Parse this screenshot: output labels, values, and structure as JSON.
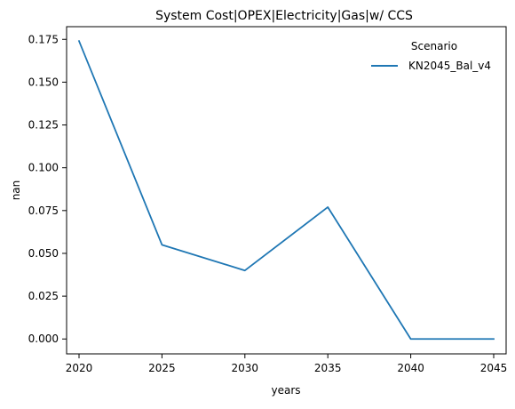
{
  "chart_data": {
    "type": "line",
    "title": "System Cost|OPEX|Electricity|Gas|w/ CCS",
    "xlabel": "years",
    "ylabel": "nan",
    "x": [
      2020,
      2025,
      2030,
      2035,
      2040,
      2045
    ],
    "xticks": [
      "2020",
      "2025",
      "2030",
      "2035",
      "2040",
      "2045"
    ],
    "xlim": [
      2019.25,
      2045.75
    ],
    "yticks": [
      "0.000",
      "0.025",
      "0.050",
      "0.075",
      "0.100",
      "0.125",
      "0.150",
      "0.175"
    ],
    "ylim": [
      -0.0087,
      0.1824
    ],
    "grid": false,
    "legend": {
      "title": "Scenario",
      "placement": "top-right"
    },
    "series": [
      {
        "name": "KN2045_Bal_v4",
        "color": "#1f77b4",
        "values": [
          0.174,
          0.055,
          0.04,
          0.077,
          0.0,
          0.0
        ]
      }
    ]
  }
}
